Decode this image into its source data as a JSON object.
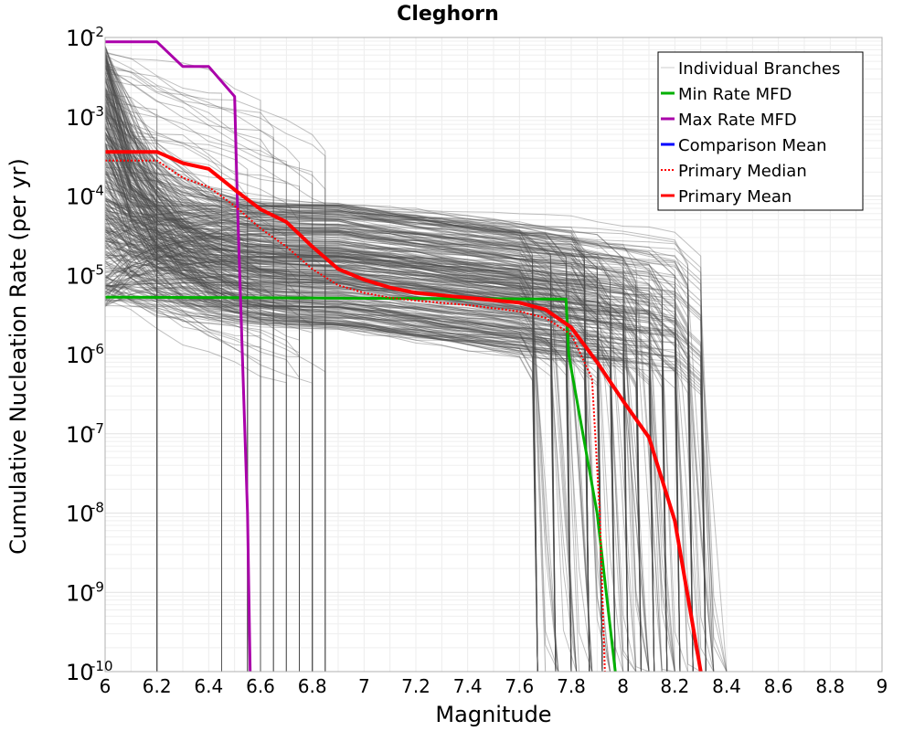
{
  "chart_data": {
    "type": "line",
    "title": "Cleghorn",
    "xlabel": "Magnitude",
    "ylabel": "Cumulative Nucleation Rate (per yr)",
    "xlim": [
      6,
      9
    ],
    "ylim_log10": [
      -10,
      -2
    ],
    "y_scale": "log",
    "grid": true,
    "legend_position": "top-right",
    "x_ticks": [
      "6",
      "6.2",
      "6.4",
      "6.6",
      "6.8",
      "7",
      "7.2",
      "7.4",
      "7.6",
      "7.8",
      "8",
      "8.2",
      "8.4",
      "8.6",
      "8.8",
      "9"
    ],
    "y_ticks": [
      {
        "base": "10",
        "exp": "-2",
        "log": -2
      },
      {
        "base": "10",
        "exp": "-3",
        "log": -3
      },
      {
        "base": "10",
        "exp": "-4",
        "log": -4
      },
      {
        "base": "10",
        "exp": "-5",
        "log": -5
      },
      {
        "base": "10",
        "exp": "-6",
        "log": -6
      },
      {
        "base": "10",
        "exp": "-7",
        "log": -7
      },
      {
        "base": "10",
        "exp": "-8",
        "log": -8
      },
      {
        "base": "10",
        "exp": "-9",
        "log": -9
      },
      {
        "base": "10",
        "exp": "-10",
        "log": -10
      }
    ],
    "legend": [
      {
        "name": "Individual Branches",
        "color": "#cccccc",
        "style": "solid"
      },
      {
        "name": "Min Rate MFD",
        "color": "#00b000",
        "style": "solid"
      },
      {
        "name": "Max Rate MFD",
        "color": "#aa00aa",
        "style": "solid"
      },
      {
        "name": "Comparison Mean",
        "color": "#0000ff",
        "style": "solid"
      },
      {
        "name": " Primary Median",
        "color": "#ff0000",
        "style": "dotted"
      },
      {
        "name": "Primary Mean",
        "color": "#ff0000",
        "style": "solid"
      }
    ],
    "series": [
      {
        "name": "Min Rate MFD",
        "color": "#00b000",
        "points": [
          [
            6.0,
            5.3e-06
          ],
          [
            7.78,
            5e-06
          ],
          [
            7.79,
            1e-06
          ],
          [
            7.9,
            1e-08
          ],
          [
            7.97,
            1e-10
          ]
        ]
      },
      {
        "name": "Max Rate MFD",
        "color": "#aa00aa",
        "points": [
          [
            6.0,
            0.0088
          ],
          [
            6.2,
            0.0088
          ],
          [
            6.3,
            0.0043
          ],
          [
            6.4,
            0.0043
          ],
          [
            6.5,
            0.0018
          ],
          [
            6.51,
            0.0001
          ],
          [
            6.55,
            1e-08
          ],
          [
            6.56,
            1e-10
          ]
        ]
      },
      {
        "name": "Primary Median",
        "color": "#ff0000",
        "points": [
          [
            6.0,
            0.00028
          ],
          [
            6.2,
            0.00028
          ],
          [
            6.3,
            0.00017
          ],
          [
            6.4,
            0.00013
          ],
          [
            6.5,
            7.5e-05
          ],
          [
            6.6,
            3.9e-05
          ],
          [
            6.7,
            2.3e-05
          ],
          [
            6.8,
            1.2e-05
          ],
          [
            6.9,
            7.5e-06
          ],
          [
            7.0,
            6e-06
          ],
          [
            7.1,
            5.2e-06
          ],
          [
            7.2,
            4.8e-06
          ],
          [
            7.4,
            4.2e-06
          ],
          [
            7.6,
            3.5e-06
          ],
          [
            7.7,
            2.9e-06
          ],
          [
            7.8,
            1.8e-06
          ],
          [
            7.88,
            5e-07
          ],
          [
            7.91,
            1e-08
          ],
          [
            7.93,
            1e-10
          ]
        ]
      },
      {
        "name": "Primary Mean",
        "color": "#ff0000",
        "points": [
          [
            6.0,
            0.00036
          ],
          [
            6.2,
            0.00036
          ],
          [
            6.3,
            0.00026
          ],
          [
            6.4,
            0.00022
          ],
          [
            6.5,
            0.00012
          ],
          [
            6.6,
            6.8e-05
          ],
          [
            6.7,
            4.7e-05
          ],
          [
            6.8,
            2.3e-05
          ],
          [
            6.9,
            1.2e-05
          ],
          [
            7.0,
            8.8e-06
          ],
          [
            7.1,
            7e-06
          ],
          [
            7.2,
            6e-06
          ],
          [
            7.4,
            5.2e-06
          ],
          [
            7.6,
            4.5e-06
          ],
          [
            7.7,
            3.7e-06
          ],
          [
            7.8,
            2.2e-06
          ],
          [
            7.9,
            8e-07
          ],
          [
            8.0,
            2.6e-07
          ],
          [
            8.1,
            9e-08
          ],
          [
            8.2,
            8e-09
          ],
          [
            8.3,
            1e-10
          ]
        ]
      }
    ]
  }
}
